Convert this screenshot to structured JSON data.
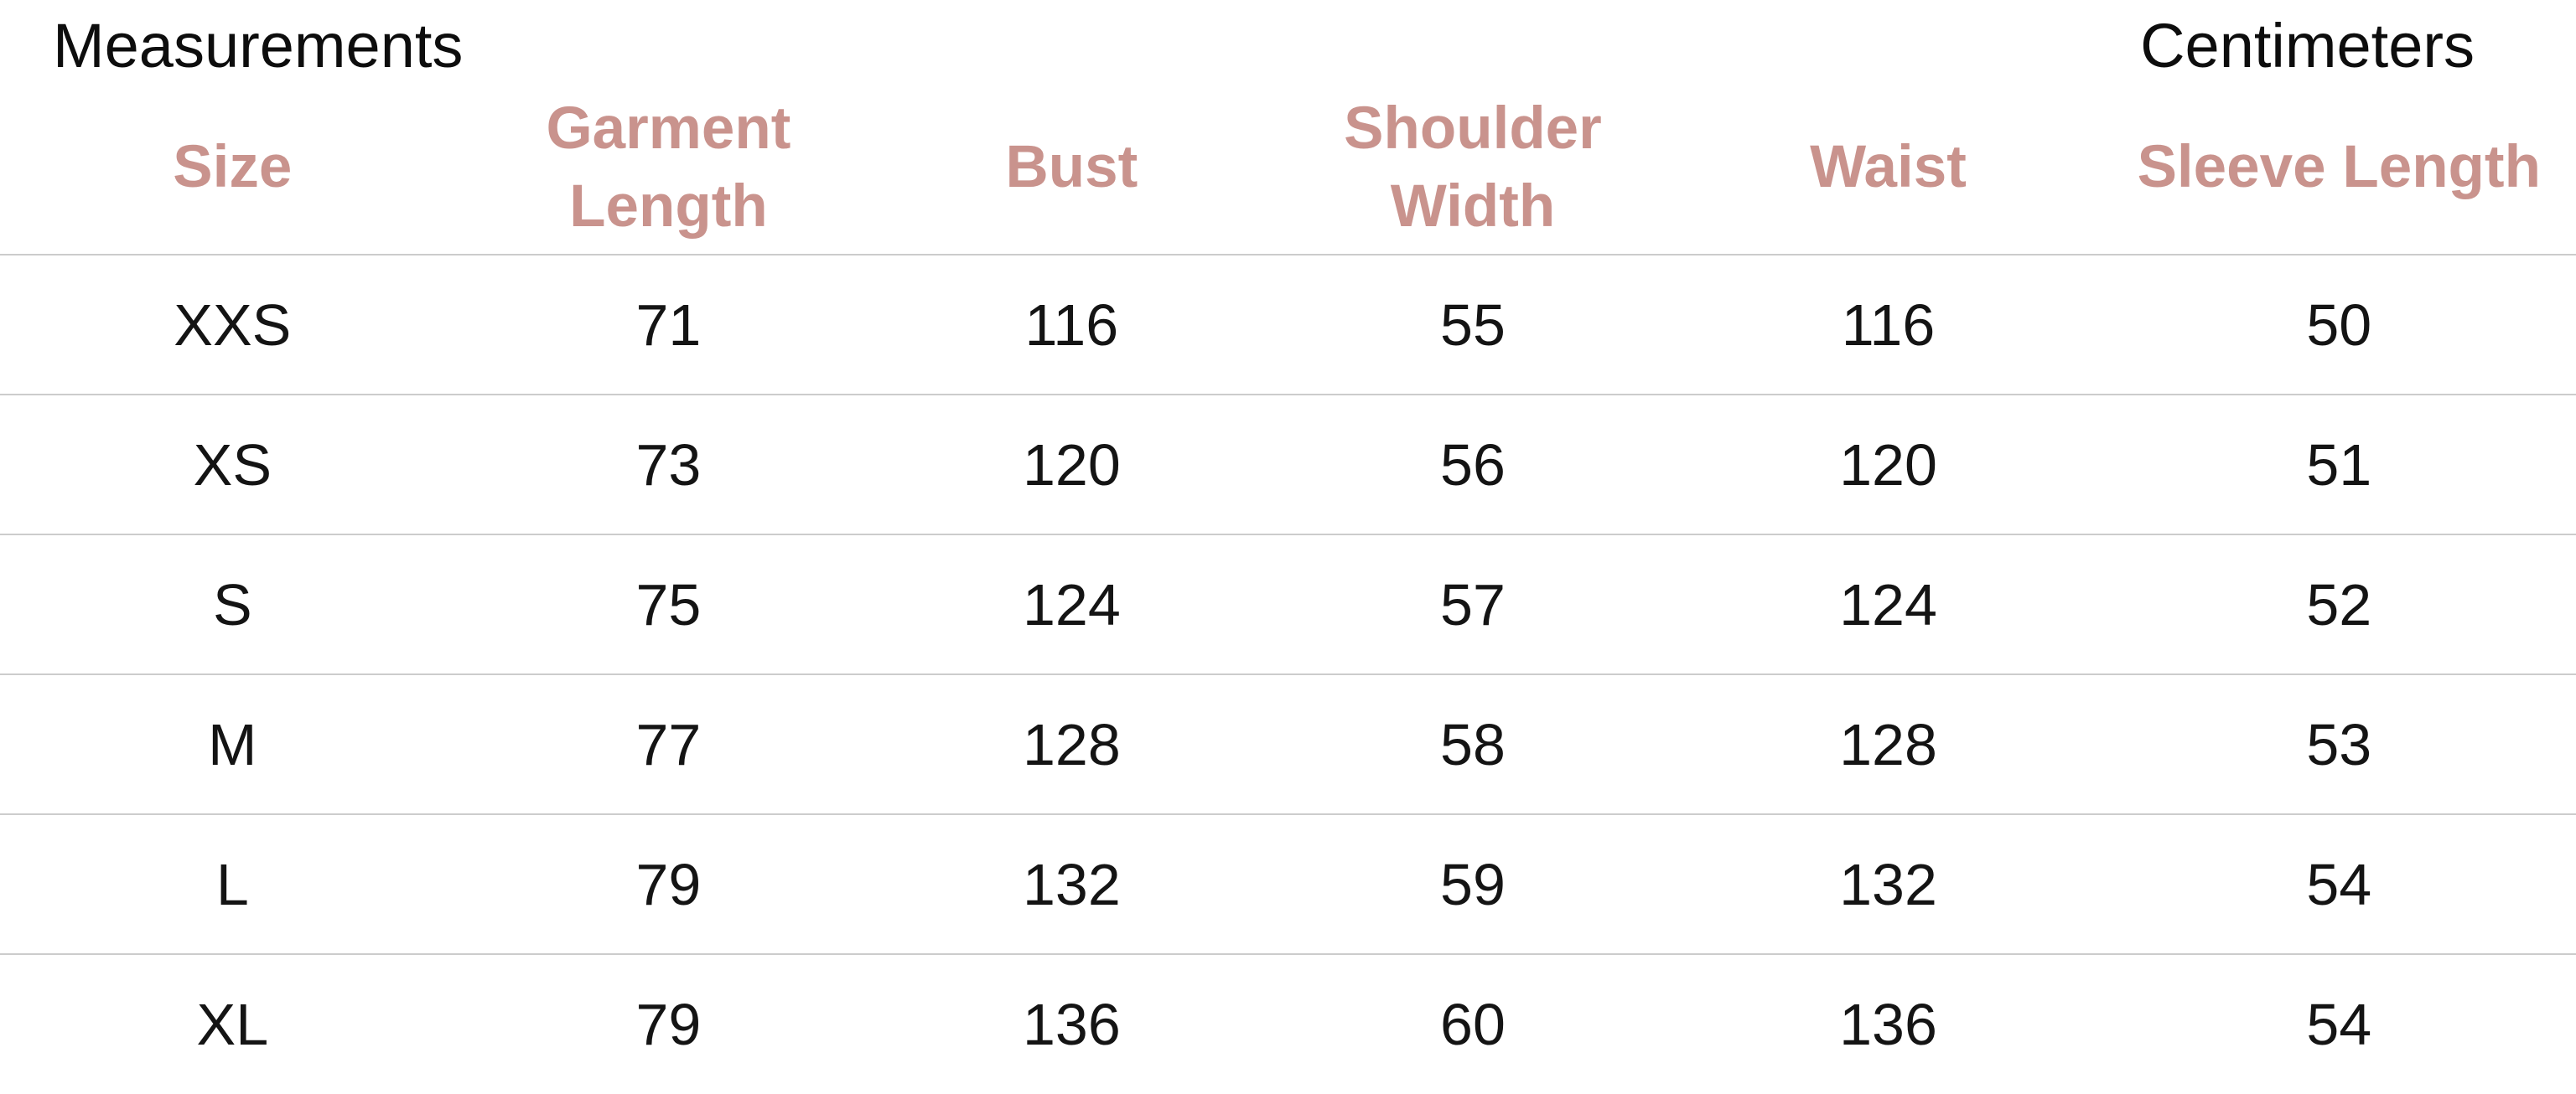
{
  "page": {
    "title": "Measurements",
    "unit_label": "Centimeters"
  },
  "colors": {
    "header_text": "#c9938d",
    "body_text": "#141414",
    "divider": "#cccccc",
    "background": "#ffffff"
  },
  "table": {
    "columns": [
      {
        "key": "size",
        "label": "Size"
      },
      {
        "key": "garment_length",
        "label": "Garment Length"
      },
      {
        "key": "bust",
        "label": "Bust"
      },
      {
        "key": "shoulder_width",
        "label": "Shoulder Width"
      },
      {
        "key": "waist",
        "label": "Waist"
      },
      {
        "key": "sleeve_length",
        "label": "Sleeve Length"
      }
    ],
    "rows": [
      {
        "size": "XXS",
        "garment_length": "71",
        "bust": "116",
        "shoulder_width": "55",
        "waist": "116",
        "sleeve_length": "50"
      },
      {
        "size": "XS",
        "garment_length": "73",
        "bust": "120",
        "shoulder_width": "56",
        "waist": "120",
        "sleeve_length": "51"
      },
      {
        "size": "S",
        "garment_length": "75",
        "bust": "124",
        "shoulder_width": "57",
        "waist": "124",
        "sleeve_length": "52"
      },
      {
        "size": "M",
        "garment_length": "77",
        "bust": "128",
        "shoulder_width": "58",
        "waist": "128",
        "sleeve_length": "53"
      },
      {
        "size": "L",
        "garment_length": "79",
        "bust": "132",
        "shoulder_width": "59",
        "waist": "132",
        "sleeve_length": "54"
      },
      {
        "size": "XL",
        "garment_length": "79",
        "bust": "136",
        "shoulder_width": "60",
        "waist": "136",
        "sleeve_length": "54"
      }
    ]
  }
}
